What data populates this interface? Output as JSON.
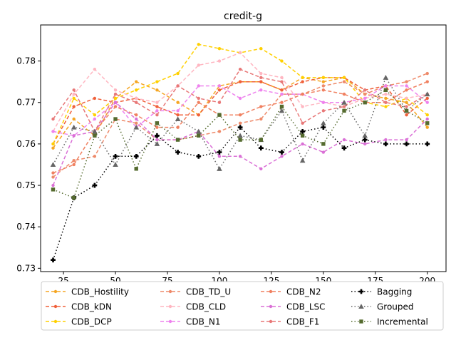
{
  "chart_data": {
    "type": "line",
    "title": "credit-g",
    "xlabel": "",
    "ylabel": "",
    "x": [
      20,
      30,
      40,
      50,
      60,
      70,
      80,
      90,
      100,
      110,
      120,
      130,
      140,
      150,
      160,
      170,
      180,
      190,
      200
    ],
    "xlim": [
      14,
      209
    ],
    "ylim": [
      0.7292,
      0.7887
    ],
    "xticks": [
      25,
      50,
      75,
      100,
      125,
      150,
      175,
      200
    ],
    "yticks": [
      0.73,
      0.74,
      0.75,
      0.76,
      0.77,
      0.78
    ],
    "xtick_labels": [
      "25",
      "50",
      "75",
      "100",
      "125",
      "150",
      "175",
      "200"
    ],
    "ytick_labels": [
      "0.73",
      "0.74",
      "0.75",
      "0.76",
      "0.77",
      "0.78"
    ],
    "grid": false,
    "legend_position": "below",
    "series": [
      {
        "name": "CDB_Hostility",
        "color": "#f5a623",
        "dash": "5,3",
        "marker": "circle",
        "values": [
          0.759,
          0.766,
          0.762,
          0.771,
          0.775,
          0.773,
          0.77,
          0.767,
          0.774,
          0.775,
          0.775,
          0.773,
          0.776,
          0.775,
          0.776,
          0.772,
          0.771,
          0.77,
          0.764
        ]
      },
      {
        "name": "CDB_kDN",
        "color": "#f0603a",
        "dash": "5,3",
        "marker": "circle",
        "values": [
          0.76,
          0.769,
          0.771,
          0.77,
          0.771,
          0.769,
          0.767,
          0.767,
          0.773,
          0.775,
          0.775,
          0.773,
          0.775,
          0.776,
          0.776,
          0.773,
          0.774,
          0.767,
          0.771
        ]
      },
      {
        "name": "CDB_DCP",
        "color": "#ffd000",
        "dash": "5,3",
        "marker": "circle",
        "values": [
          0.76,
          0.771,
          0.767,
          0.771,
          0.773,
          0.775,
          0.777,
          0.784,
          0.783,
          0.782,
          0.783,
          0.78,
          0.776,
          0.776,
          0.776,
          0.77,
          0.769,
          0.771,
          0.767
        ]
      },
      {
        "name": "CDB_TD_U",
        "color": "#ee8a6a",
        "dash": "5,3",
        "marker": "circle",
        "values": [
          0.752,
          0.756,
          0.757,
          0.766,
          0.765,
          0.761,
          0.761,
          0.762,
          0.763,
          0.765,
          0.766,
          0.772,
          0.772,
          0.774,
          0.775,
          0.772,
          0.774,
          0.775,
          0.777
        ]
      },
      {
        "name": "CDB_CLD",
        "color": "#ffb6c1",
        "dash": "5,3",
        "marker": "circle",
        "values": [
          0.763,
          0.772,
          0.778,
          0.773,
          0.771,
          0.77,
          0.774,
          0.779,
          0.78,
          0.782,
          0.777,
          0.776,
          0.769,
          0.77,
          0.769,
          0.771,
          0.772,
          0.771,
          0.772
        ]
      },
      {
        "name": "CDB_N1",
        "color": "#ee82ee",
        "dash": "5,3",
        "marker": "circle",
        "values": [
          0.763,
          0.762,
          0.766,
          0.77,
          0.764,
          0.768,
          0.768,
          0.774,
          0.774,
          0.771,
          0.773,
          0.772,
          0.772,
          0.77,
          0.77,
          0.771,
          0.774,
          0.774,
          0.77
        ]
      },
      {
        "name": "CDB_N2",
        "color": "#f08060",
        "dash": "5,3",
        "marker": "circle",
        "values": [
          0.753,
          0.755,
          0.763,
          0.769,
          0.767,
          0.764,
          0.764,
          0.77,
          0.767,
          0.767,
          0.769,
          0.77,
          0.772,
          0.773,
          0.772,
          0.77,
          0.77,
          0.773,
          0.775
        ]
      },
      {
        "name": "CDB_LSC",
        "color": "#da70d6",
        "dash": "5,3",
        "marker": "circle",
        "values": [
          0.75,
          0.762,
          0.763,
          0.77,
          0.766,
          0.761,
          0.761,
          0.763,
          0.757,
          0.757,
          0.754,
          0.757,
          0.76,
          0.758,
          0.761,
          0.76,
          0.761,
          0.761,
          0.766
        ]
      },
      {
        "name": "CDB_F1",
        "color": "#e87878",
        "dash": "5,3",
        "marker": "circle",
        "values": [
          0.766,
          0.773,
          0.763,
          0.772,
          0.77,
          0.767,
          0.774,
          0.771,
          0.77,
          0.778,
          0.776,
          0.775,
          0.765,
          0.768,
          0.769,
          0.773,
          0.77,
          0.769,
          0.772
        ]
      },
      {
        "name": "Bagging",
        "color": "#000000",
        "dash": "1.5,3",
        "marker": "plus",
        "values": [
          0.732,
          0.747,
          0.75,
          0.757,
          0.757,
          0.762,
          0.758,
          0.757,
          0.758,
          0.764,
          0.759,
          0.758,
          0.763,
          0.764,
          0.759,
          0.761,
          0.76,
          0.76,
          0.76
        ]
      },
      {
        "name": "Grouped",
        "color": "#666666",
        "dash": "1.5,3",
        "marker": "triangle",
        "values": [
          0.755,
          0.764,
          0.763,
          0.755,
          0.764,
          0.76,
          0.766,
          0.763,
          0.754,
          0.762,
          0.761,
          0.768,
          0.756,
          0.765,
          0.77,
          0.762,
          0.776,
          0.768,
          0.772
        ]
      },
      {
        "name": "Incremental",
        "color": "#556b2f",
        "dash": "1.5,3",
        "marker": "square",
        "values": [
          0.749,
          0.747,
          0.762,
          0.766,
          0.754,
          0.765,
          0.761,
          0.762,
          0.767,
          0.761,
          0.761,
          0.769,
          0.762,
          0.76,
          0.768,
          0.77,
          0.773,
          0.768,
          0.765
        ]
      }
    ]
  }
}
